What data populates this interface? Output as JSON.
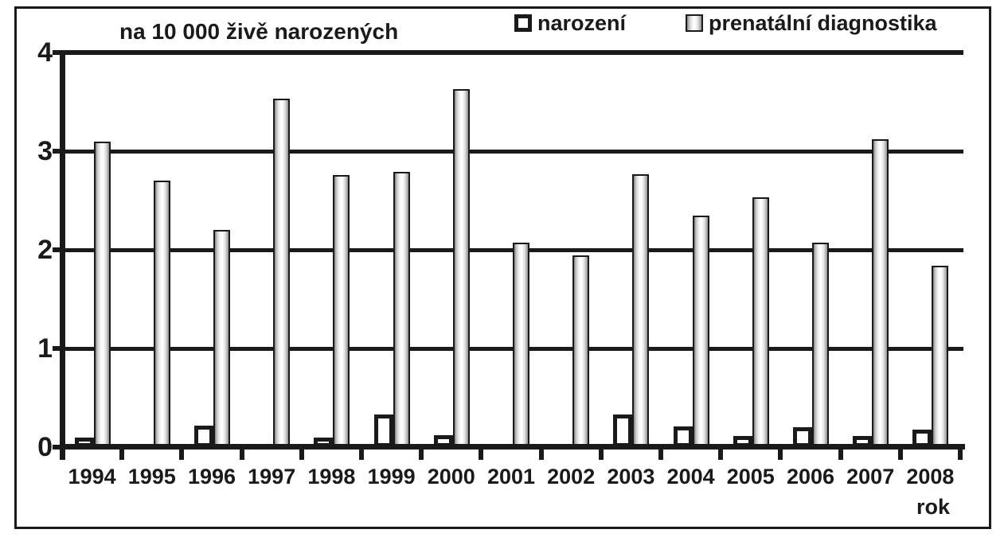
{
  "title": "na 10 000 živě narozených",
  "x_axis_label": "rok",
  "legend": {
    "narozeni_label": "narození",
    "prenatalni_label": "prenatální diagnostika"
  },
  "colors": {
    "ink": "#1a1a1a",
    "background": "#ffffff",
    "narozeni_fill": "#ffffff",
    "prenatalni_gradient": [
      "#828282",
      "#f8f8f8",
      "#ffffff",
      "#8f8f8f"
    ]
  },
  "chart_data": {
    "type": "bar",
    "title": "na 10 000 živě narozených",
    "xlabel": "rok",
    "ylabel": "",
    "ylim": [
      0,
      4
    ],
    "yticks": [
      0,
      1,
      2,
      3,
      4
    ],
    "grid": true,
    "legend_position": "top",
    "categories": [
      "1994",
      "1995",
      "1996",
      "1997",
      "1998",
      "1999",
      "2000",
      "2001",
      "2002",
      "2003",
      "2004",
      "2005",
      "2006",
      "2007",
      "2008"
    ],
    "series": [
      {
        "name": "narození",
        "values": [
          0.1,
          0,
          0.22,
          0,
          0.1,
          0.33,
          0.12,
          0,
          0,
          0.33,
          0.21,
          0.11,
          0.2,
          0.11,
          0.18
        ]
      },
      {
        "name": "prenatální diagnostika",
        "values": [
          3.1,
          2.7,
          2.2,
          3.53,
          2.76,
          2.79,
          3.63,
          2.07,
          1.94,
          2.77,
          2.35,
          2.53,
          2.07,
          3.12,
          1.84
        ]
      }
    ]
  }
}
